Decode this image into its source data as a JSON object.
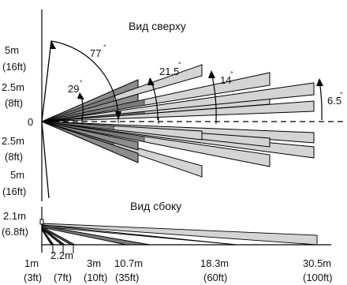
{
  "top_view": {
    "title": "Вид сверху",
    "center_label": "0",
    "distance_labels_up": [
      "5m",
      "(16ft)",
      "2.5m",
      "(8ft)"
    ],
    "distance_labels_down": [
      "2.5m",
      "(8ft)",
      "5m",
      "(16ft)"
    ],
    "angles": [
      "77",
      "29",
      "21.5",
      "14",
      "6.5"
    ],
    "degree_symbol": "°"
  },
  "side_view": {
    "title": "Вид сбоку",
    "height_label": "2.1m",
    "height_label_ft": "(6.8ft)",
    "distances": [
      "1m",
      "2.2m",
      "3m",
      "10.7m",
      "18.3m",
      "30.5m"
    ],
    "distances_ft": [
      "(3ft)",
      "(7ft)",
      "(10ft)",
      "(35ft)",
      "(60ft)",
      "(100ft)"
    ]
  },
  "colors": {
    "beam_light": "#d4d4d4",
    "beam_dark": "#7a7a7a",
    "line": "#000000"
  }
}
